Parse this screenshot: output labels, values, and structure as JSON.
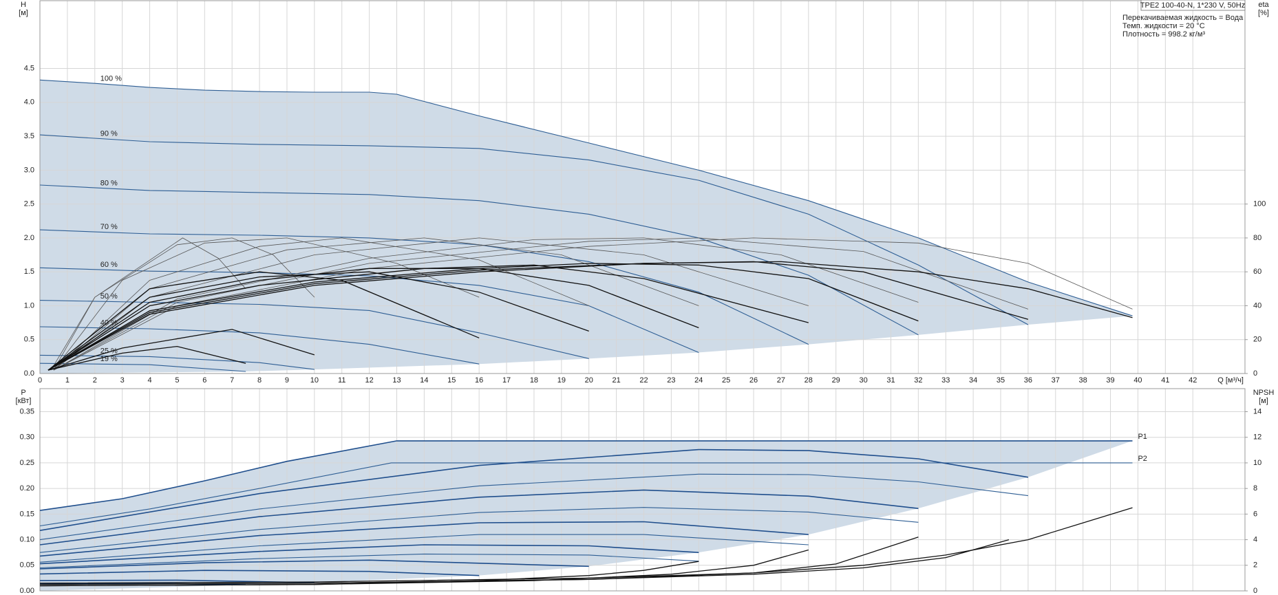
{
  "chart_data": [
    {
      "type": "line",
      "title": "TPE2 100-40-N, 1*230 V, 50Hz",
      "annotations": [
        "Перекачиваемая жидкость = Вода",
        "Темп. жидкости = 20 °C",
        "Плотность = 998.2 кг/м³"
      ],
      "y_label": [
        "H",
        "[м]"
      ],
      "y2_label": [
        "eta",
        "[%]"
      ],
      "x_label": "Q [м³/ч]",
      "xlim": [
        0,
        43.9
      ],
      "xticks": [
        0,
        1,
        2,
        3,
        4,
        5,
        6,
        7,
        8,
        9,
        10,
        11,
        12,
        13,
        14,
        15,
        16,
        17,
        18,
        19,
        20,
        21,
        22,
        23,
        24,
        25,
        26,
        27,
        28,
        29,
        30,
        31,
        32,
        33,
        34,
        35,
        36,
        37,
        38,
        39,
        40,
        41,
        42
      ],
      "ylim": [
        0,
        5.5
      ],
      "yticks": [
        {
          "value": 0,
          "label": "0.0"
        },
        0.5,
        {
          "value": 1,
          "label": "1.0"
        },
        1.5,
        {
          "value": 2,
          "label": "2.0"
        },
        2.5,
        {
          "value": 3,
          "label": "3.0"
        },
        3.5,
        {
          "value": 4,
          "label": "4.0"
        },
        4.5
      ],
      "y2lim": [
        0,
        220
      ],
      "y2ticks": [
        0,
        20,
        40,
        60,
        80,
        100
      ],
      "grid": true,
      "range_color": "#cfdbe7",
      "series": [
        {
          "name": "100 %",
          "color": "#2d5d93",
          "x": [
            0,
            2,
            4,
            6,
            8,
            10,
            12,
            13,
            16,
            20,
            24,
            28,
            32,
            36,
            39.8
          ],
          "values": [
            4.33,
            4.28,
            4.22,
            4.18,
            4.16,
            4.15,
            4.15,
            4.12,
            3.8,
            3.4,
            3.0,
            2.55,
            2.0,
            1.35,
            0.85
          ]
        },
        {
          "name": "90 %",
          "color": "#2d5d93",
          "x": [
            0,
            4,
            8,
            12,
            16,
            20,
            24,
            28,
            32,
            36
          ],
          "values": [
            3.52,
            3.42,
            3.38,
            3.36,
            3.32,
            3.15,
            2.85,
            2.35,
            1.6,
            0.72
          ]
        },
        {
          "name": "80 %",
          "color": "#2d5d93",
          "x": [
            0,
            4,
            8,
            12,
            16,
            20,
            24,
            28,
            32
          ],
          "values": [
            2.78,
            2.7,
            2.67,
            2.64,
            2.55,
            2.35,
            2.0,
            1.45,
            0.57
          ]
        },
        {
          "name": "70 %",
          "color": "#2d5d93",
          "x": [
            0,
            4,
            8,
            12,
            16,
            20,
            24,
            28
          ],
          "values": [
            2.12,
            2.06,
            2.04,
            2.0,
            1.9,
            1.65,
            1.2,
            0.43
          ]
        },
        {
          "name": "60 %",
          "color": "#2d5d93",
          "x": [
            0,
            4,
            8,
            12,
            16,
            20,
            24
          ],
          "values": [
            1.56,
            1.51,
            1.49,
            1.44,
            1.3,
            1.0,
            0.31
          ]
        },
        {
          "name": "50 %",
          "color": "#2d5d93",
          "x": [
            0,
            4,
            8,
            12,
            16,
            20
          ],
          "values": [
            1.08,
            1.05,
            1.02,
            0.93,
            0.6,
            0.22
          ]
        },
        {
          "name": "40 %",
          "color": "#2d5d93",
          "x": [
            0,
            4,
            8,
            12,
            16
          ],
          "values": [
            0.69,
            0.66,
            0.6,
            0.43,
            0.14
          ]
        },
        {
          "name": "25 %",
          "color": "#2d5d93",
          "x": [
            0,
            4,
            8,
            10
          ],
          "values": [
            0.27,
            0.25,
            0.16,
            0.06
          ]
        },
        {
          "name": "19 %",
          "color": "#2d5d93",
          "x": [
            0,
            4,
            7.5
          ],
          "values": [
            0.15,
            0.13,
            0.03
          ]
        },
        {
          "axis": "y2",
          "color": "#555555",
          "x": [
            0.5,
            5,
            12,
            20,
            26,
            32,
            36,
            39.8
          ],
          "values": [
            2,
            40,
            62,
            75,
            80,
            77,
            65,
            38
          ]
        },
        {
          "axis": "y2",
          "color": "#555555",
          "x": [
            0.5,
            5,
            12,
            20,
            24,
            30,
            36
          ],
          "values": [
            2,
            42,
            65,
            78,
            80,
            72,
            38
          ]
        },
        {
          "axis": "y2",
          "color": "#555555",
          "x": [
            0.5,
            5,
            12,
            18,
            22,
            27,
            32
          ],
          "values": [
            2,
            44,
            68,
            79,
            80,
            70,
            42
          ]
        },
        {
          "axis": "y2",
          "color": "#555555",
          "x": [
            0.5,
            4,
            10,
            16,
            22,
            28
          ],
          "values": [
            2,
            45,
            70,
            80,
            70,
            40
          ]
        },
        {
          "axis": "y2",
          "color": "#555555",
          "x": [
            0.5,
            4,
            9,
            14,
            19,
            24
          ],
          "values": [
            2,
            50,
            73,
            80,
            70,
            40
          ]
        },
        {
          "axis": "y2",
          "color": "#555555",
          "x": [
            0.5,
            4,
            8,
            11,
            16,
            20
          ],
          "values": [
            2,
            55,
            75,
            80,
            67,
            40
          ]
        },
        {
          "axis": "y2",
          "color": "#555555",
          "x": [
            0.5,
            3,
            6,
            9,
            13,
            16
          ],
          "values": [
            2,
            55,
            77,
            80,
            65,
            45
          ]
        },
        {
          "axis": "y2",
          "color": "#555555",
          "x": [
            0.5,
            2,
            5,
            7,
            8.5,
            10
          ],
          "values": [
            2,
            45,
            76,
            80,
            70,
            45
          ]
        },
        {
          "axis": "y2",
          "color": "#555555",
          "x": [
            0.4,
            2,
            5.2,
            6.5,
            7.5
          ],
          "values": [
            2,
            45,
            80,
            68,
            50
          ]
        },
        {
          "axis": "y2",
          "color": "#111111",
          "x": [
            0.3,
            4,
            10,
            16,
            22,
            27,
            32,
            36,
            39.8
          ],
          "values": [
            2,
            35,
            52,
            60,
            65,
            66,
            60,
            50,
            33
          ]
        },
        {
          "axis": "y2",
          "color": "#111111",
          "x": [
            0.3,
            4,
            10,
            16,
            22,
            26,
            30,
            36
          ],
          "values": [
            2,
            36,
            53,
            61,
            65,
            66,
            60,
            32
          ]
        },
        {
          "axis": "y2",
          "color": "#111111",
          "x": [
            0.3,
            4,
            10,
            16,
            20,
            24,
            28,
            32
          ],
          "values": [
            2,
            37,
            54,
            62,
            65,
            64,
            56,
            31
          ]
        },
        {
          "axis": "y2",
          "color": "#111111",
          "x": [
            0.3,
            4,
            8,
            14,
            18,
            22,
            28
          ],
          "values": [
            2,
            40,
            52,
            62,
            64,
            56,
            30
          ]
        },
        {
          "axis": "y2",
          "color": "#111111",
          "x": [
            0.3,
            4,
            8,
            12,
            16,
            20,
            24
          ],
          "values": [
            2,
            42,
            55,
            62,
            62,
            52,
            27
          ]
        },
        {
          "axis": "y2",
          "color": "#111111",
          "x": [
            0.3,
            4,
            8,
            12,
            16,
            20
          ],
          "values": [
            2,
            45,
            57,
            60,
            48,
            25
          ]
        },
        {
          "axis": "y2",
          "color": "#111111",
          "x": [
            0.3,
            4,
            8,
            11,
            16
          ],
          "values": [
            2,
            50,
            60,
            55,
            21
          ]
        },
        {
          "axis": "y2",
          "color": "#111111",
          "x": [
            0.3,
            3,
            7,
            10
          ],
          "values": [
            2,
            15,
            26,
            11
          ]
        },
        {
          "axis": "y2",
          "color": "#111111",
          "x": [
            0.3,
            3,
            5,
            7.5
          ],
          "values": [
            2,
            12,
            16,
            6
          ]
        }
      ]
    },
    {
      "type": "line",
      "y_label": [
        "P",
        "[кВт]"
      ],
      "y2_label": [
        "NPSH",
        "[м]"
      ],
      "xlim": [
        0,
        43.9
      ],
      "ylim": [
        0,
        0.395
      ],
      "yticks": [
        {
          "value": 0,
          "label": "0.00"
        },
        0.05,
        {
          "value": 0.1,
          "label": "0.10"
        },
        0.15,
        {
          "value": 0.2,
          "label": "0.20"
        },
        0.25,
        {
          "value": 0.3,
          "label": "0.30"
        },
        0.35
      ],
      "y2lim": [
        0,
        15.8
      ],
      "y2ticks": [
        0,
        2,
        4,
        6,
        8,
        10,
        12,
        14
      ],
      "grid": true,
      "range_color": "#cfdbe7",
      "series": [
        {
          "name": "P1",
          "color": "#1f4e8c",
          "x": [
            0,
            3,
            6,
            9,
            13,
            39.8
          ],
          "values": [
            0.157,
            0.18,
            0.215,
            0.253,
            0.293,
            0.293
          ]
        },
        {
          "name": "P2",
          "color": "#2d5d93",
          "x": [
            0,
            4,
            8,
            12.8,
            39.8
          ],
          "values": [
            0.127,
            0.16,
            0.2,
            0.25,
            0.25
          ]
        },
        {
          "color": "#1f4e8c",
          "x": [
            0,
            8,
            16,
            24,
            28,
            32,
            36
          ],
          "values": [
            0.118,
            0.19,
            0.245,
            0.276,
            0.274,
            0.258,
            0.222
          ]
        },
        {
          "color": "#2d5d93",
          "x": [
            0,
            8,
            16,
            24,
            28,
            32,
            36
          ],
          "values": [
            0.1,
            0.16,
            0.205,
            0.228,
            0.227,
            0.213,
            0.186
          ]
        },
        {
          "color": "#1f4e8c",
          "x": [
            0,
            8,
            16,
            22,
            28,
            32
          ],
          "values": [
            0.09,
            0.145,
            0.183,
            0.197,
            0.185,
            0.161
          ]
        },
        {
          "color": "#2d5d93",
          "x": [
            0,
            8,
            16,
            22,
            28,
            32
          ],
          "values": [
            0.075,
            0.12,
            0.153,
            0.163,
            0.154,
            0.134
          ]
        },
        {
          "color": "#1f4e8c",
          "x": [
            0,
            8,
            16,
            22,
            28
          ],
          "values": [
            0.068,
            0.108,
            0.133,
            0.135,
            0.11
          ]
        },
        {
          "color": "#2d5d93",
          "x": [
            0,
            8,
            16,
            22,
            28
          ],
          "values": [
            0.056,
            0.088,
            0.11,
            0.11,
            0.09
          ]
        },
        {
          "color": "#1f4e8c",
          "x": [
            0,
            8,
            14,
            20,
            24
          ],
          "values": [
            0.053,
            0.077,
            0.09,
            0.088,
            0.075
          ]
        },
        {
          "color": "#2d5d93",
          "x": [
            0,
            8,
            14,
            20,
            24
          ],
          "values": [
            0.045,
            0.063,
            0.072,
            0.07,
            0.058
          ]
        },
        {
          "color": "#1f4e8c",
          "x": [
            0,
            6,
            12,
            20
          ],
          "values": [
            0.043,
            0.055,
            0.06,
            0.048
          ]
        },
        {
          "color": "#1f4e8c",
          "x": [
            0,
            6,
            12,
            16
          ],
          "values": [
            0.033,
            0.04,
            0.038,
            0.03
          ]
        },
        {
          "color": "#1f4e8c",
          "x": [
            0,
            5,
            10
          ],
          "values": [
            0.02,
            0.021,
            0.016
          ]
        },
        {
          "color": "#1f4e8c",
          "x": [
            0,
            4,
            7.5
          ],
          "values": [
            0.014,
            0.015,
            0.012
          ]
        },
        {
          "axis": "y2",
          "color": "#111111",
          "x": [
            0,
            10,
            20,
            26,
            30,
            33,
            36,
            39.8
          ],
          "values": [
            0.6,
            0.7,
            1.0,
            1.4,
            2.0,
            2.8,
            4.0,
            6.5
          ]
        },
        {
          "axis": "y2",
          "color": "#111111",
          "x": [
            0,
            10,
            20,
            26,
            30,
            33,
            35.3
          ],
          "values": [
            0.5,
            0.6,
            0.9,
            1.3,
            1.8,
            2.6,
            4.0
          ]
        },
        {
          "axis": "y2",
          "color": "#111111",
          "x": [
            0,
            10,
            20,
            26,
            29,
            32
          ],
          "values": [
            0.5,
            0.6,
            0.9,
            1.4,
            2.1,
            4.2
          ]
        },
        {
          "axis": "y2",
          "color": "#111111",
          "x": [
            0,
            10,
            18,
            23,
            26,
            28
          ],
          "values": [
            0.4,
            0.5,
            0.8,
            1.3,
            2.0,
            3.2
          ]
        },
        {
          "axis": "y2",
          "color": "#111111",
          "x": [
            0,
            10,
            16,
            20,
            22,
            24
          ],
          "values": [
            0.4,
            0.5,
            0.8,
            1.2,
            1.6,
            2.3
          ]
        }
      ]
    }
  ]
}
